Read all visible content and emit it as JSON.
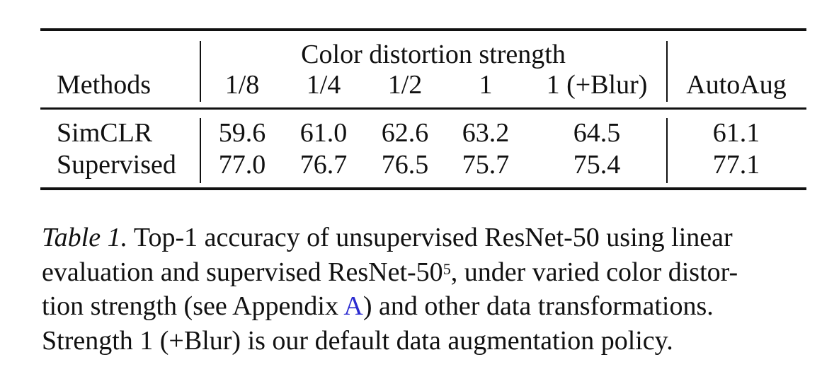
{
  "table": {
    "group_header": "Color distortion strength",
    "col_methods": "Methods",
    "columns": [
      "1/8",
      "1/4",
      "1/2",
      "1",
      "1 (+Blur)",
      "AutoAug"
    ],
    "rows": [
      {
        "method": "SimCLR",
        "values": [
          "59.6",
          "61.0",
          "62.6",
          "63.2",
          "64.5",
          "61.1"
        ]
      },
      {
        "method": "Supervised",
        "values": [
          "77.0",
          "76.7",
          "76.5",
          "75.7",
          "75.4",
          "77.1"
        ]
      }
    ]
  },
  "caption": {
    "label": "Table 1.",
    "line1_rest": "Top-1 accuracy of unsupervised ResNet-50 using linear",
    "line2_a": "evaluation and supervised ResNet-50",
    "line2_sup": "5",
    "line2_b": ", under varied color distor-",
    "line3_a": "tion strength (see Appendix ",
    "line3_link": "A",
    "line3_b": ") and other data transformations.",
    "line4": "Strength 1 (+Blur) is our default data augmentation policy."
  }
}
